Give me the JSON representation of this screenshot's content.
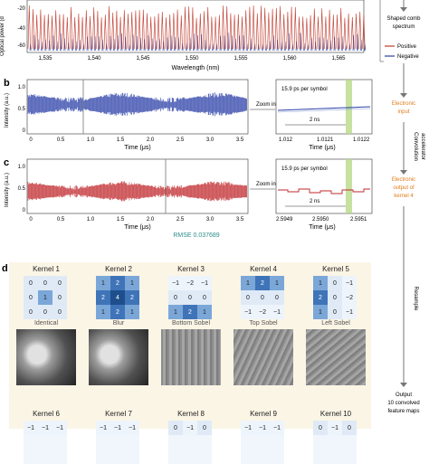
{
  "panel_a": {
    "ylabel": "Optical power (d",
    "yticks": [
      "-20",
      "-40",
      "-60"
    ],
    "xlabel": "Wavelength (nm)",
    "xticks": [
      "1,535",
      "1,540",
      "1,545",
      "1,550",
      "1,555",
      "1,560",
      "1,565"
    ],
    "legend": [
      "Positive",
      "Negative"
    ],
    "side_label": [
      "Shaped comb",
      "spectrum"
    ]
  },
  "panel_b": {
    "letter": "b",
    "ylabel": "Intensity (a.u.)",
    "yticks": [
      "1.0",
      "0.5",
      "0"
    ],
    "xlabel": "Time (μs)",
    "xticks": [
      "0",
      "0.5",
      "1.0",
      "1.5",
      "2.0",
      "2.5",
      "3.0",
      "3.5"
    ],
    "zoom_label": "Zoom in",
    "inset_symbol": "15.9 ps per symbol",
    "inset_span": "2 ns",
    "inset_xticks": [
      "1.012",
      "1.0121",
      "1.0122"
    ],
    "inset_xlabel": "Time (μs)",
    "side_label": [
      "Electronic",
      "input"
    ]
  },
  "panel_c": {
    "letter": "c",
    "ylabel": "Intensity (a.u.)",
    "yticks": [
      "1.0",
      "0.5",
      "0"
    ],
    "xlabel": "Time (μs)",
    "xticks": [
      "0",
      "0.5",
      "1.0",
      "1.5",
      "2.0",
      "2.5",
      "3.0",
      "3.5"
    ],
    "rmse": "RMSE 0.037689",
    "zoom_label": "Zoom in",
    "inset_symbol": "15.9 ps per symbol",
    "inset_span": "2 ns",
    "inset_xticks": [
      "2.5949",
      "2.5950",
      "2.5951"
    ],
    "inset_xlabel": "Time (μs)",
    "side_label": [
      "Electronic",
      "output of",
      "kernel 4"
    ]
  },
  "flow": {
    "arrow1": [
      "Convolution",
      "accelerator"
    ],
    "arrow2": "Resample",
    "output": [
      "Output",
      "10 convolved",
      "feature maps"
    ]
  },
  "panel_d": {
    "letter": "d",
    "kernels": [
      {
        "name": "Kernel 1",
        "label": "Identical",
        "values": [
          "0",
          "0",
          "0",
          "0",
          "1",
          "0",
          "0",
          "0",
          "0"
        ]
      },
      {
        "name": "Kernel 2",
        "label": "Blur",
        "values": [
          "1",
          "2",
          "1",
          "2",
          "4",
          "2",
          "1",
          "2",
          "1"
        ]
      },
      {
        "name": "Kernel 3",
        "label": "Bottom Sobel",
        "values": [
          "−1",
          "−2",
          "−1",
          "0",
          "0",
          "0",
          "1",
          "2",
          "1"
        ]
      },
      {
        "name": "Kernel 4",
        "label": "Top Sobel",
        "values": [
          "1",
          "2",
          "1",
          "0",
          "0",
          "0",
          "−1",
          "−2",
          "−1"
        ]
      },
      {
        "name": "Kernel 5",
        "label": "Left Sobel",
        "values": [
          "1",
          "0",
          "−1",
          "2",
          "0",
          "−2",
          "1",
          "0",
          "−1"
        ]
      },
      {
        "name": "Kernel 6",
        "label": "",
        "values": [
          "−1",
          "−1",
          "−1",
          "",
          "",
          "",
          "",
          "",
          ""
        ]
      },
      {
        "name": "Kernel 7",
        "label": "",
        "values": [
          "−1",
          "−1",
          "−1",
          "",
          "",
          "",
          "",
          "",
          ""
        ]
      },
      {
        "name": "Kernel 8",
        "label": "",
        "values": [
          "0",
          "−1",
          "0",
          "",
          "",
          "",
          "",
          "",
          ""
        ]
      },
      {
        "name": "Kernel 9",
        "label": "",
        "values": [
          "−1",
          "−1",
          "−1",
          "",
          "",
          "",
          "",
          "",
          ""
        ]
      },
      {
        "name": "Kernel 10",
        "label": "",
        "values": [
          "0",
          "−1",
          "0",
          "",
          "",
          "",
          "",
          "",
          ""
        ]
      }
    ]
  },
  "colors": {
    "positive": "#c0392b",
    "negative": "#2c3e9e",
    "input_trace": "#2b3fa8",
    "output_trace": "#c0282d",
    "orange_label": "#e07b1a",
    "rmse": "#2e8b8b",
    "panel_bg": "#fbf5e6",
    "highlight": "#b9d98a"
  }
}
